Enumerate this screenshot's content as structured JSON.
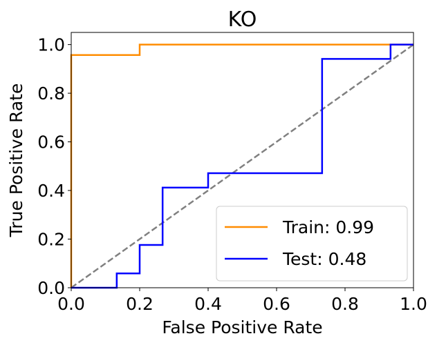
{
  "chart_data": {
    "type": "line",
    "title": "KO",
    "xlabel": "False Positive Rate",
    "ylabel": "True Positive Rate",
    "xlim": [
      0.0,
      1.0
    ],
    "ylim": [
      0.0,
      1.05
    ],
    "xticks": [
      "0.0",
      "0.2",
      "0.4",
      "0.6",
      "0.8",
      "1.0"
    ],
    "yticks": [
      "0.0",
      "0.2",
      "0.4",
      "0.6",
      "0.8",
      "1.0"
    ],
    "grid": false,
    "legend_position": "lower-right",
    "series": [
      {
        "name": "Train: 0.99",
        "color": "#ff8c00",
        "style": "solid",
        "x": [
          0.0,
          0.0,
          0.2,
          0.2,
          1.0
        ],
        "y": [
          0.0,
          0.957,
          0.957,
          1.0,
          1.0
        ]
      },
      {
        "name": "Test: 0.48",
        "color": "#0000ff",
        "style": "solid",
        "x": [
          0.0,
          0.133,
          0.133,
          0.2,
          0.2,
          0.267,
          0.267,
          0.4,
          0.4,
          0.733,
          0.733,
          0.933,
          0.933,
          1.0
        ],
        "y": [
          0.0,
          0.0,
          0.059,
          0.059,
          0.176,
          0.176,
          0.412,
          0.412,
          0.471,
          0.471,
          0.941,
          0.941,
          1.0,
          1.0
        ]
      }
    ],
    "reference_line": {
      "color": "#808080",
      "style": "dashed",
      "x": [
        0.0,
        1.0
      ],
      "y": [
        0.0,
        1.0
      ]
    }
  }
}
